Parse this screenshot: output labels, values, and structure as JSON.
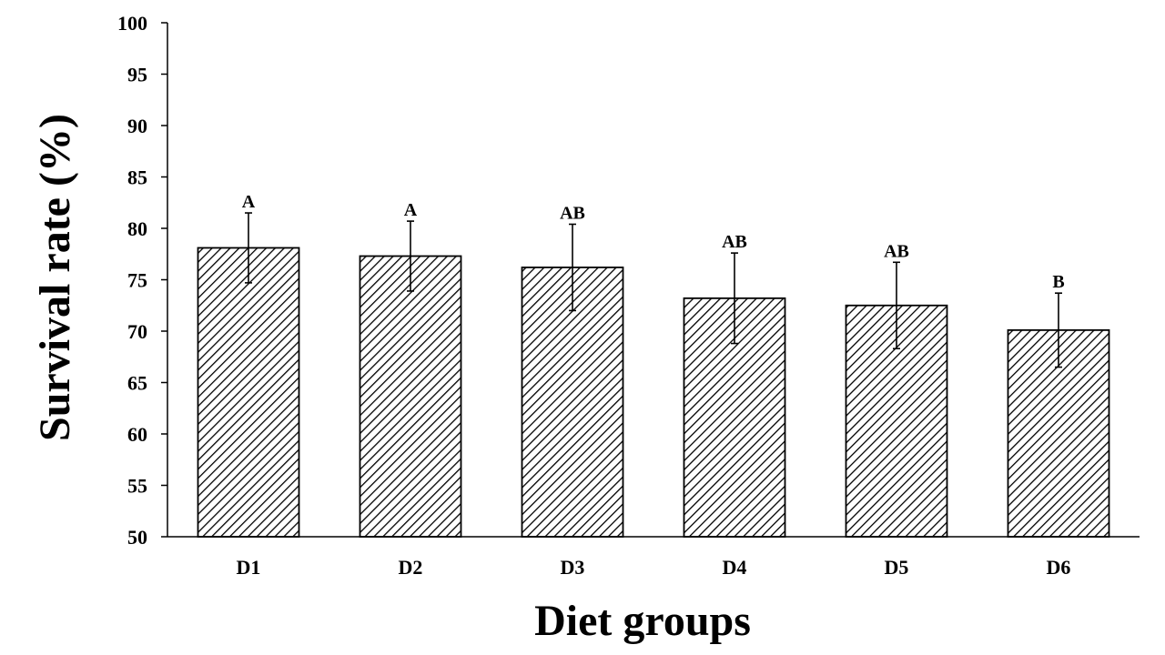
{
  "chart_data": {
    "type": "bar",
    "title": "",
    "xlabel": "Diet groups",
    "ylabel": "Survival rate (%)",
    "ylim": [
      50,
      100
    ],
    "ytick_step": 5,
    "yticks": [
      "50",
      "55",
      "60",
      "65",
      "70",
      "75",
      "80",
      "85",
      "90",
      "95",
      "100"
    ],
    "categories": [
      "D1",
      "D2",
      "D3",
      "D4",
      "D5",
      "D6"
    ],
    "values": [
      78.1,
      77.3,
      76.2,
      73.2,
      72.5,
      70.1
    ],
    "error_bars": [
      3.4,
      3.4,
      4.2,
      4.4,
      4.2,
      3.6
    ],
    "significance_labels": [
      "A",
      "A",
      "AB",
      "AB",
      "AB",
      "B"
    ],
    "bar_fill": "diagonal-hatch",
    "grid": false,
    "legend": "none"
  },
  "colors": {
    "bar_stroke": "#000000",
    "hatch": "#000000",
    "background": "#ffffff"
  }
}
